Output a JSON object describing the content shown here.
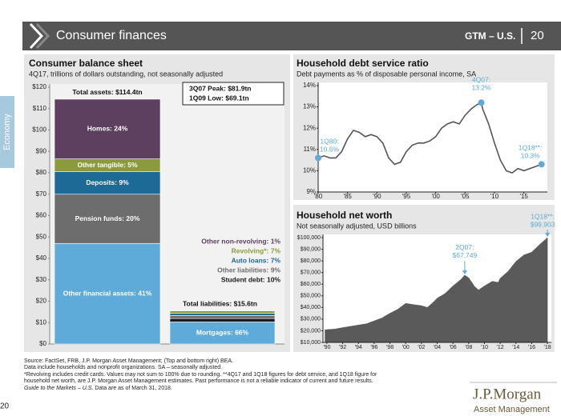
{
  "header": {
    "title": "Consumer finances",
    "section": "GTM – U.S.",
    "page": "20"
  },
  "side_tab": "Economy",
  "chart_data": [
    {
      "type": "stacked_bar",
      "title": "Consumer balance sheet",
      "subtitle": "4Q17, trillions of dollars outstanding, not seasonally adjusted",
      "ylim": [
        0,
        120
      ],
      "yticks": [
        {
          "value": 0,
          "label": "$0"
        },
        {
          "value": 10,
          "label": "$10"
        },
        {
          "value": 20,
          "label": "$20"
        },
        {
          "value": 30,
          "label": "$30"
        },
        {
          "value": 40,
          "label": "$40"
        },
        {
          "value": 50,
          "label": "$50"
        },
        {
          "value": 60,
          "label": "$60"
        },
        {
          "value": 70,
          "label": "$70"
        },
        {
          "value": 80,
          "label": "$80"
        },
        {
          "value": 90,
          "label": "$90"
        },
        {
          "value": 100,
          "label": "$100"
        },
        {
          "value": 110,
          "label": "$110"
        },
        {
          "value": 120,
          "label": "$120"
        }
      ],
      "stacks": [
        {
          "total_label": "Total assets: $114.4tn",
          "segments": [
            {
              "name": "Other financial assets: 41%",
              "value": 47.0,
              "color": "#5eaad8"
            },
            {
              "name": "Pension funds: 20%",
              "value": 23.0,
              "color": "#6d6d6d"
            },
            {
              "name": "Deposits: 9%",
              "value": 10.5,
              "color": "#1d6a96"
            },
            {
              "name": "Other tangible: 5%",
              "value": 6.0,
              "color": "#8b9a3c"
            },
            {
              "name": "Homes: 24%",
              "value": 27.9,
              "color": "#5d4060"
            }
          ]
        },
        {
          "total_label": "Total liabilities: $15.6tn",
          "segments": [
            {
              "name": "Mortgages: 66%",
              "value": 10.3,
              "color": "#5eaad8"
            },
            {
              "name": "Student debt: 10%",
              "value": 1.6,
              "color": "#1a1a1a"
            },
            {
              "name": "Other liabilities: 9%",
              "value": 1.4,
              "color": "#6d6d6d"
            },
            {
              "name": "Auto loans: 7%",
              "value": 1.1,
              "color": "#1d6a96"
            },
            {
              "name": "Revolving*: 7%",
              "value": 1.1,
              "color": "#8b9a3c"
            },
            {
              "name": "Other non-revolving: 1%",
              "value": 0.1,
              "color": "#5d4060"
            }
          ]
        }
      ],
      "annotations": [
        "3Q07 Peak: $81.9tn",
        "1Q09 Low: $69.1tn"
      ]
    },
    {
      "type": "line",
      "title": "Household debt service ratio",
      "subtitle": "Debt payments as % of disposable personal income, SA",
      "color": "#555555",
      "marker_color": "#5eaad8",
      "xlim": [
        1980,
        2019
      ],
      "xticks": [
        {
          "value": 1980,
          "label": "'80"
        },
        {
          "value": 1985,
          "label": "'85"
        },
        {
          "value": 1990,
          "label": "'90"
        },
        {
          "value": 1995,
          "label": "'95"
        },
        {
          "value": 2000,
          "label": "'00"
        },
        {
          "value": 2005,
          "label": "'05"
        },
        {
          "value": 2010,
          "label": "'10"
        },
        {
          "value": 2015,
          "label": "'15"
        }
      ],
      "ylim": [
        9,
        14
      ],
      "yticks": [
        {
          "value": 9,
          "label": "9%"
        },
        {
          "value": 10,
          "label": "10%"
        },
        {
          "value": 11,
          "label": "11%"
        },
        {
          "value": 12,
          "label": "12%"
        },
        {
          "value": 13,
          "label": "13%"
        },
        {
          "value": 14,
          "label": "14%"
        }
      ],
      "x": [
        1980,
        1981,
        1982,
        1983,
        1984,
        1985,
        1986,
        1987,
        1988,
        1989,
        1990,
        1991,
        1992,
        1993,
        1994,
        1995,
        1996,
        1997,
        1998,
        1999,
        2000,
        2001,
        2002,
        2003,
        2004,
        2005,
        2006,
        2007,
        2007.75,
        2008,
        2009,
        2010,
        2011,
        2012,
        2013,
        2014,
        2015,
        2016,
        2017,
        2018
      ],
      "values": [
        10.6,
        10.7,
        10.6,
        10.6,
        10.9,
        11.5,
        11.9,
        11.8,
        11.6,
        11.7,
        11.6,
        11.3,
        10.6,
        10.3,
        10.4,
        10.9,
        11.2,
        11.3,
        11.3,
        11.4,
        11.6,
        12.0,
        12.2,
        12.3,
        12.2,
        12.6,
        12.9,
        13.1,
        13.2,
        12.9,
        12.2,
        11.3,
        10.5,
        10.0,
        9.9,
        10.1,
        10.0,
        10.1,
        10.2,
        10.3
      ],
      "annotations": [
        {
          "label": "1Q80:",
          "x": 1980,
          "value": 10.6,
          "value_label": "10.6%"
        },
        {
          "label": "4Q07:",
          "x": 2007.75,
          "value": 13.2,
          "value_label": "13.2%"
        },
        {
          "label": "1Q18**:",
          "x": 2018,
          "value": 10.3,
          "value_label": "10.3%"
        }
      ]
    },
    {
      "type": "area",
      "title": "Household net worth",
      "subtitle": "Not seasonally adjusted, USD billions",
      "color": "#5a5a5a",
      "annotation_color": "#5eaad8",
      "xlim": [
        1989.5,
        2018.5
      ],
      "xticks": [
        {
          "value": 1990,
          "label": "'90"
        },
        {
          "value": 1992,
          "label": "'92"
        },
        {
          "value": 1994,
          "label": "'94"
        },
        {
          "value": 1996,
          "label": "'96"
        },
        {
          "value": 1998,
          "label": "'98"
        },
        {
          "value": 2000,
          "label": "'00"
        },
        {
          "value": 2002,
          "label": "'02"
        },
        {
          "value": 2004,
          "label": "'04"
        },
        {
          "value": 2006,
          "label": "'06"
        },
        {
          "value": 2008,
          "label": "'08"
        },
        {
          "value": 2010,
          "label": "'10"
        },
        {
          "value": 2012,
          "label": "'12"
        },
        {
          "value": 2014,
          "label": "'14"
        },
        {
          "value": 2016,
          "label": "'16"
        },
        {
          "value": 2018,
          "label": "'18"
        }
      ],
      "ylim": [
        10000,
        100000
      ],
      "yticks": [
        {
          "value": 10000,
          "label": "$10,000"
        },
        {
          "value": 20000,
          "label": "$20,000"
        },
        {
          "value": 30000,
          "label": "$30,000"
        },
        {
          "value": 40000,
          "label": "$40,000"
        },
        {
          "value": 50000,
          "label": "$50,000"
        },
        {
          "value": 60000,
          "label": "$60,000"
        },
        {
          "value": 70000,
          "label": "$70,000"
        },
        {
          "value": 80000,
          "label": "$80,000"
        },
        {
          "value": 90000,
          "label": "$90,000"
        },
        {
          "value": 100000,
          "label": "$100,000"
        }
      ],
      "x": [
        1989.75,
        1990,
        1991,
        1992,
        1993,
        1994,
        1995,
        1996,
        1997,
        1998,
        1999,
        2000,
        2001,
        2002,
        2002.75,
        2003.5,
        2004,
        2005,
        2006,
        2007,
        2007.5,
        2008,
        2008.75,
        2009.25,
        2010,
        2011,
        2011.75,
        2012,
        2013,
        2014,
        2015,
        2016,
        2017,
        2018
      ],
      "values": [
        20800,
        21000,
        21500,
        22700,
        23800,
        24900,
        26000,
        28500,
        31000,
        35000,
        38500,
        43500,
        42500,
        41500,
        40000,
        44500,
        48000,
        52000,
        58500,
        64000,
        67749,
        65500,
        58000,
        55000,
        58500,
        62500,
        61500,
        65000,
        71000,
        79500,
        85000,
        87500,
        94000,
        99903
      ],
      "annotations": [
        {
          "label": "2Q07:",
          "x": 2007.5,
          "value": 67749,
          "value_label": "$67,749"
        },
        {
          "label": "1Q18**:",
          "x": 2018,
          "value": 99903,
          "value_label": "$99,903"
        }
      ]
    }
  ],
  "footer": {
    "notes": [
      "Source: FactSet, FRB, J.P. Morgan Asset Management; (Top and bottom right) BEA.",
      "Data include households and nonprofit organizations. SA – seasonally adjusted.",
      "*Revolving includes credit cards. Values may not sum to 100% due to rounding. **4Q17 and 1Q18 figures for debt service, and 1Q18 figure for",
      "household net worth, are J.P. Morgan Asset Management estimates. Past performance is not a reliable indicator of current and future results."
    ],
    "guide": "Guide to the Markets – U.S.",
    "as_of": " Data are as of March 31, 2018."
  },
  "logo": {
    "name": "J.P.Morgan",
    "sub": "Asset Management"
  },
  "page_number": "20"
}
